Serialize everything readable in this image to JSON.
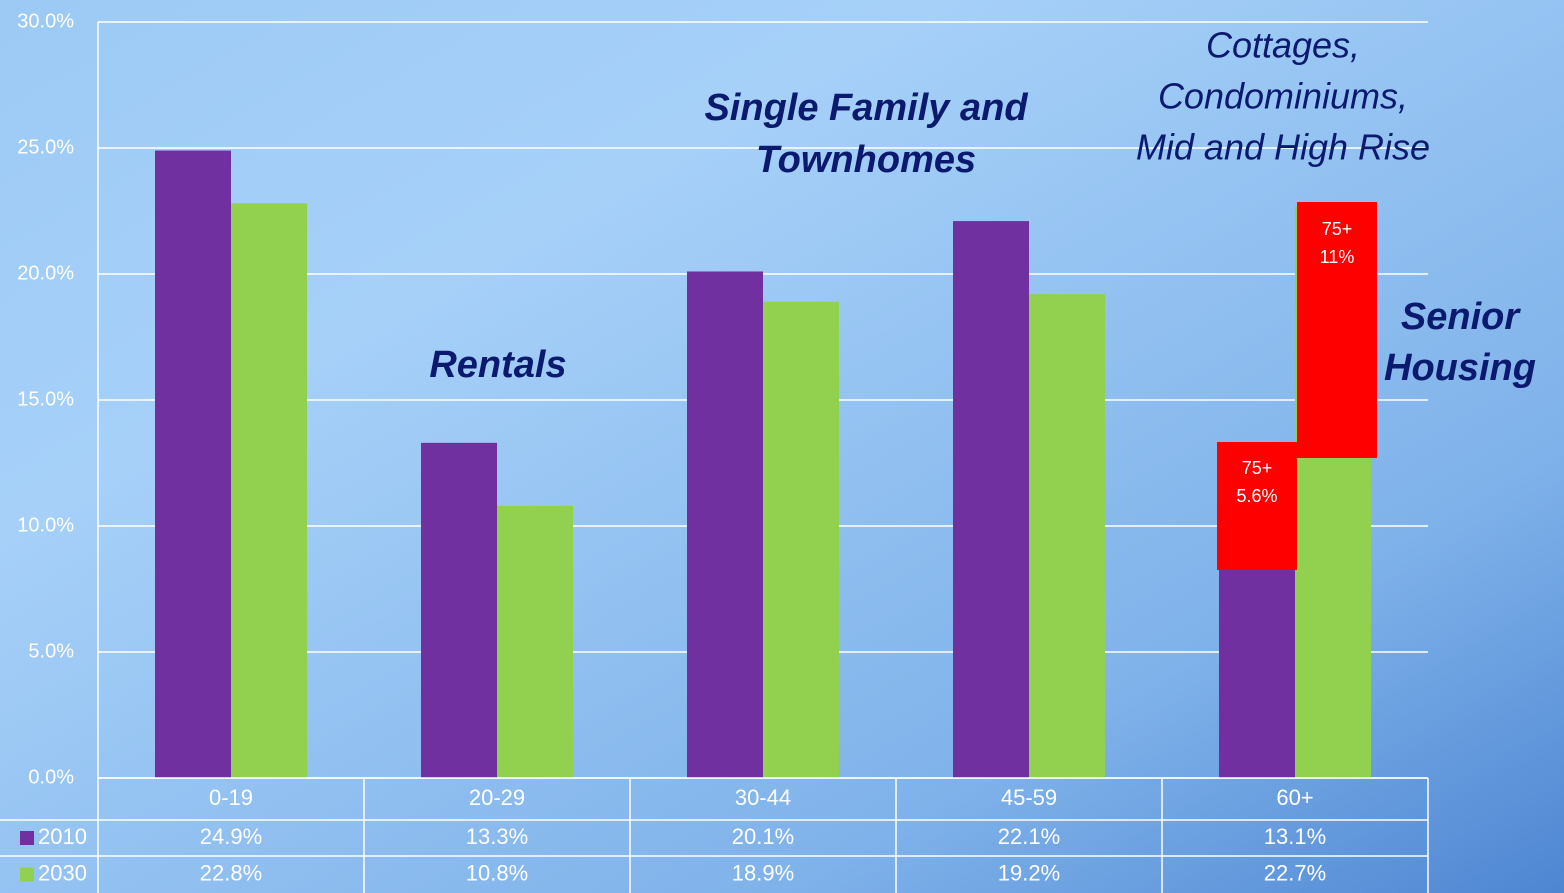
{
  "chart_data": {
    "type": "bar",
    "categories": [
      "0-19",
      "20-29",
      "30-44",
      "45-59",
      "60+"
    ],
    "series": [
      {
        "name": "2010",
        "color": "#7030a0",
        "values": [
          24.9,
          13.3,
          20.1,
          22.1,
          13.1
        ],
        "value_labels": [
          "24.9%",
          "13.3%",
          "20.1%",
          "22.1%",
          "13.1%"
        ]
      },
      {
        "name": "2030",
        "color": "#92d050",
        "values": [
          22.8,
          10.8,
          18.9,
          19.2,
          22.7
        ],
        "value_labels": [
          "22.8%",
          "10.8%",
          "18.9%",
          "19.2%",
          "22.7%"
        ]
      }
    ],
    "ylim": [
      0,
      30
    ],
    "yticks": [
      {
        "value": 0,
        "label": "0.0%"
      },
      {
        "value": 5,
        "label": "5.0%"
      },
      {
        "value": 10,
        "label": "10.0%"
      },
      {
        "value": 15,
        "label": "15.0%"
      },
      {
        "value": 20,
        "label": "20.0%"
      },
      {
        "value": 25,
        "label": "25.0%"
      },
      {
        "value": 30,
        "label": "30.0%"
      }
    ],
    "grid": true,
    "data_table": true,
    "annotations": [
      {
        "lines": [
          "Rentals"
        ]
      },
      {
        "lines": [
          "Single Family and",
          "Townhomes"
        ]
      },
      {
        "lines": [
          "Cottages,",
          "Condominiums,",
          "Mid and High Rise"
        ]
      },
      {
        "lines": [
          "Senior",
          "Housing"
        ]
      },
      {
        "lines": [
          "75+",
          "5.6%"
        ]
      },
      {
        "lines": [
          "75+",
          "11%"
        ]
      }
    ]
  }
}
